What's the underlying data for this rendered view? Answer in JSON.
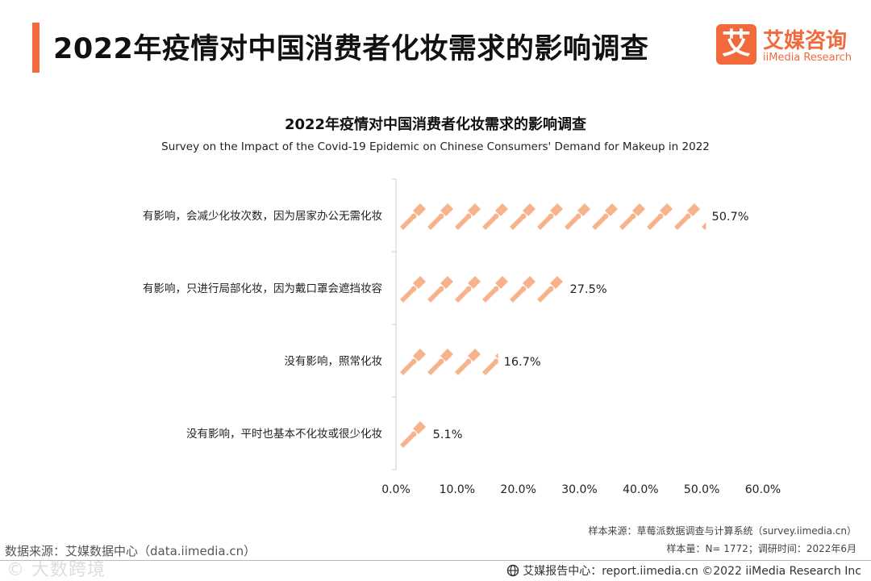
{
  "header": {
    "title": "2022年疫情对中国消费者化妆需求的影响调查"
  },
  "logo": {
    "mark": "艾",
    "name_cn": "艾媒咨询",
    "name_en": "iiMedia Research"
  },
  "colors": {
    "accent": "#f26a3c",
    "bar": "#f7b38c",
    "axis": "#cccccc"
  },
  "chart_data": {
    "type": "bar",
    "orientation": "horizontal",
    "title": "2022年疫情对中国消费者化妆需求的影响调查",
    "subtitle": "Survey on the Impact of the Covid-19 Epidemic on Chinese Consumers' Demand for Makeup in 2022",
    "categories": [
      "有影响，会减少化妆次数，因为居家办公无需化妆",
      "有影响，只进行局部化妆，因为戴口罩会遮挡妆容",
      "没有影响，照常化妆",
      "没有影响，平时也基本不化妆或很少化妆"
    ],
    "values": [
      50.7,
      27.5,
      16.7,
      5.1
    ],
    "value_labels": [
      "50.7%",
      "27.5%",
      "16.7%",
      "5.1%"
    ],
    "xlim": [
      0,
      60
    ],
    "xticks": [
      0,
      10,
      20,
      30,
      40,
      50,
      60
    ],
    "xtick_labels": [
      "0.0%",
      "10.0%",
      "20.0%",
      "30.0%",
      "40.0%",
      "50.0%",
      "60.0%"
    ],
    "mark_icon": "makeup-brush-icon",
    "grid": false,
    "legend": "none"
  },
  "footer": {
    "sample_source": "样本来源：草莓派数据调查与计算系统（survey.iimedia.cn）",
    "sample_info": "样本量：N= 1772；调研时间：2022年6月",
    "data_source": "数据来源：艾媒数据中心（data.iimedia.cn）",
    "report_center": "艾媒报告中心：report.iimedia.cn   ©2022  iiMedia Research  Inc",
    "watermark": "© 大数跨境"
  }
}
